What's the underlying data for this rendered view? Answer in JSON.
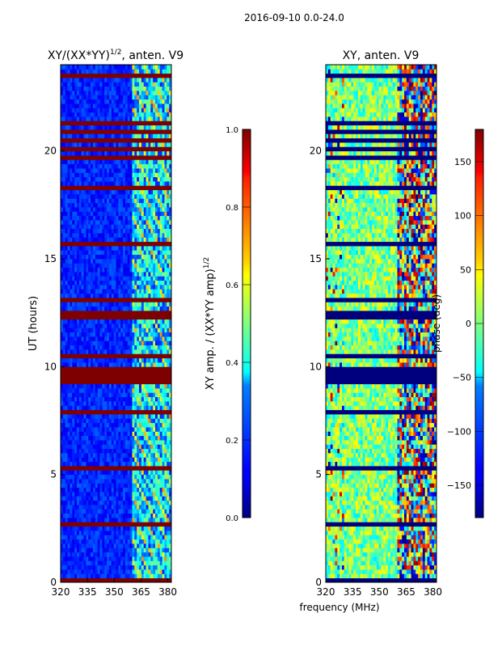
{
  "figure_title": "2016-09-10 0.0-24.0",
  "chart_data": [
    {
      "type": "heatmap",
      "title_main": "XY/(XX*YY)",
      "title_sup": "1/2",
      "title_tail": ", anten. V9",
      "xlabel": "",
      "ylabel": "UT (hours)",
      "xlim": [
        320,
        382
      ],
      "ylim": [
        0,
        24
      ],
      "xticks": [
        320,
        335,
        350,
        365,
        380
      ],
      "yticks": [
        0,
        5,
        10,
        15,
        20
      ],
      "colormap": "jet",
      "colorbar": {
        "label_main": "XY amp. / (XX*YY amp)",
        "label_sup": "1/2",
        "range": [
          0.0,
          1.0
        ],
        "ticks": [
          "0.0",
          "0.2",
          "0.4",
          "0.6",
          "0.8",
          "1.0"
        ],
        "tick_values": [
          0.0,
          0.2,
          0.4,
          0.6,
          0.8,
          1.0
        ]
      }
    },
    {
      "type": "heatmap",
      "title_main": "XY, anten. V9",
      "xlabel": "frequency (MHz)",
      "ylabel": "",
      "xlim": [
        320,
        382
      ],
      "ylim": [
        0,
        24
      ],
      "xticks": [
        320,
        335,
        350,
        365,
        380
      ],
      "yticks": [
        0,
        5,
        10,
        15,
        20
      ],
      "colormap": "jet",
      "colorbar": {
        "label_main": "phase (deg)",
        "range": [
          -180,
          180
        ],
        "ticks": [
          "150",
          "100",
          "50",
          "0",
          "−50",
          "−100",
          "−150"
        ],
        "tick_values": [
          150,
          100,
          50,
          0,
          -50,
          -100,
          -150
        ]
      }
    }
  ]
}
